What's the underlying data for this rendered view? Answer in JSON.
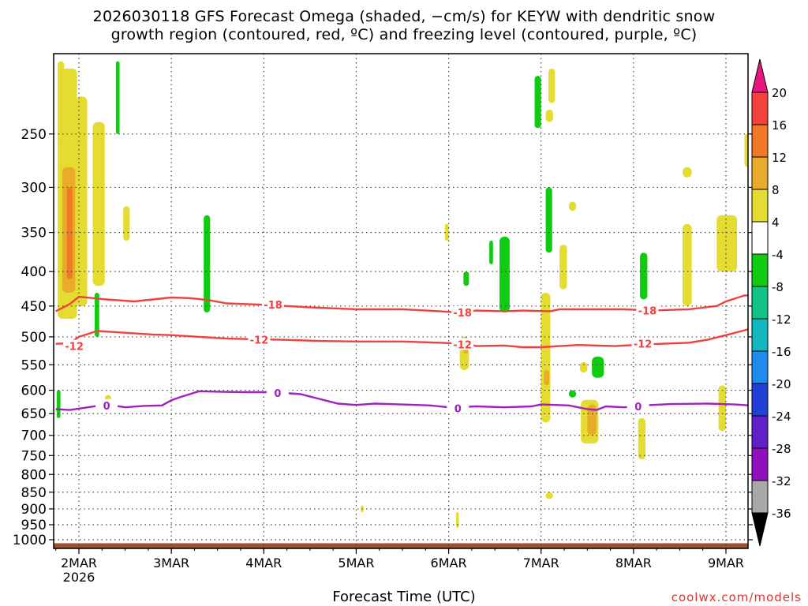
{
  "chart_data": {
    "type": "heatmap",
    "title_line1": "2026030118 GFS Forecast Omega (shaded, −cm/s) for KEYW with dendritic snow",
    "title_line2": "growth region (contoured, red, ºC) and freezing level (contoured, purple, ºC)",
    "xlabel": "Forecast Time (UTC)",
    "credit": "coolwx.com/models",
    "x_axis": {
      "unit": "day",
      "range": [
        "2026-03-01T18",
        "2026-03-09T06"
      ],
      "ticks": [
        {
          "label": "2MAR",
          "sub": "2026",
          "day": 2
        },
        {
          "label": "3MAR",
          "day": 3
        },
        {
          "label": "4MAR",
          "day": 4
        },
        {
          "label": "5MAR",
          "day": 5
        },
        {
          "label": "6MAR",
          "day": 6
        },
        {
          "label": "7MAR",
          "day": 7
        },
        {
          "label": "8MAR",
          "day": 8
        },
        {
          "label": "9MAR",
          "day": 9
        }
      ]
    },
    "y_axis": {
      "unit": "hPa",
      "range": [
        1030,
        190
      ],
      "ticks": [
        250,
        300,
        350,
        400,
        450,
        500,
        550,
        600,
        650,
        700,
        750,
        800,
        850,
        900,
        950,
        1000
      ]
    },
    "colorbar": {
      "levels": [
        20,
        16,
        12,
        8,
        4,
        -4,
        -8,
        -12,
        -16,
        -20,
        -24,
        -28,
        -32,
        -36
      ],
      "colors": [
        "#e8157e",
        "#f5413c",
        "#f07828",
        "#e8ac2a",
        "#e5dc32",
        "#ffffff",
        "#10cc10",
        "#12c388",
        "#12b8c0",
        "#1e8cee",
        "#2040d8",
        "#6020c8",
        "#9010c0",
        "#a8a8a8",
        "#000000"
      ]
    },
    "contours": [
      {
        "label": "-18",
        "color": "#f04040",
        "points": [
          [
            1.75,
            458
          ],
          [
            1.9,
            447
          ],
          [
            2.0,
            436
          ],
          [
            2.3,
            440
          ],
          [
            2.6,
            443
          ],
          [
            2.8,
            440
          ],
          [
            3.0,
            437
          ],
          [
            3.2,
            438
          ],
          [
            3.4,
            441
          ],
          [
            3.6,
            446
          ],
          [
            4.0,
            448
          ],
          [
            4.5,
            452
          ],
          [
            5.0,
            455
          ],
          [
            5.5,
            455
          ],
          [
            5.9,
            458
          ],
          [
            6.1,
            460
          ],
          [
            6.3,
            457
          ],
          [
            6.6,
            458
          ],
          [
            6.8,
            457
          ],
          [
            7.1,
            458
          ],
          [
            7.2,
            455
          ],
          [
            7.6,
            455
          ],
          [
            7.9,
            455
          ],
          [
            8.2,
            457
          ],
          [
            8.4,
            456
          ],
          [
            8.6,
            455
          ],
          [
            8.9,
            450
          ],
          [
            9.0,
            443
          ],
          [
            9.2,
            434
          ],
          [
            9.25,
            434
          ]
        ],
        "labels_at": [
          [
            4.1,
            448
          ],
          [
            6.15,
            460
          ],
          [
            8.15,
            457
          ]
        ]
      },
      {
        "label": "-12",
        "color": "#f04040",
        "points": [
          [
            1.75,
            512
          ],
          [
            1.9,
            511
          ],
          [
            2.0,
            500
          ],
          [
            2.2,
            490
          ],
          [
            2.4,
            492
          ],
          [
            2.6,
            494
          ],
          [
            2.8,
            496
          ],
          [
            3.0,
            497
          ],
          [
            3.3,
            500
          ],
          [
            3.6,
            503
          ],
          [
            3.9,
            504
          ],
          [
            4.2,
            505
          ],
          [
            4.6,
            507
          ],
          [
            5.0,
            508
          ],
          [
            5.5,
            508
          ],
          [
            5.9,
            510
          ],
          [
            6.2,
            512
          ],
          [
            6.3,
            516
          ],
          [
            6.6,
            515
          ],
          [
            6.8,
            518
          ],
          [
            7.0,
            518
          ],
          [
            7.2,
            516
          ],
          [
            7.4,
            514
          ],
          [
            7.8,
            516
          ],
          [
            8.0,
            514
          ],
          [
            8.3,
            512
          ],
          [
            8.6,
            510
          ],
          [
            8.8,
            505
          ],
          [
            9.0,
            497
          ],
          [
            9.25,
            487
          ]
        ],
        "labels_at": [
          [
            1.95,
            516
          ],
          [
            3.95,
            505
          ],
          [
            6.15,
            513
          ],
          [
            8.1,
            512
          ]
        ]
      },
      {
        "label": "0",
        "color": "#a020c0",
        "points": [
          [
            1.75,
            640
          ],
          [
            1.9,
            642
          ],
          [
            2.1,
            636
          ],
          [
            2.3,
            630
          ],
          [
            2.5,
            636
          ],
          [
            2.7,
            633
          ],
          [
            2.9,
            632
          ],
          [
            3.0,
            621
          ],
          [
            3.1,
            614
          ],
          [
            3.2,
            608
          ],
          [
            3.3,
            602
          ],
          [
            3.5,
            603
          ],
          [
            3.8,
            604
          ],
          [
            4.1,
            604
          ],
          [
            4.4,
            608
          ],
          [
            4.6,
            618
          ],
          [
            4.8,
            628
          ],
          [
            5.0,
            631
          ],
          [
            5.2,
            628
          ],
          [
            5.5,
            630
          ],
          [
            5.8,
            632
          ],
          [
            6.0,
            636
          ],
          [
            6.3,
            634
          ],
          [
            6.6,
            636
          ],
          [
            6.9,
            634
          ],
          [
            7.0,
            630
          ],
          [
            7.3,
            632
          ],
          [
            7.5,
            640
          ],
          [
            7.6,
            642
          ],
          [
            7.7,
            634
          ],
          [
            7.9,
            636
          ],
          [
            8.1,
            632
          ],
          [
            8.4,
            629
          ],
          [
            8.8,
            628
          ],
          [
            9.1,
            630
          ],
          [
            9.25,
            632
          ]
        ],
        "labels_at": [
          [
            2.3,
            632
          ],
          [
            4.15,
            606
          ],
          [
            6.1,
            638
          ],
          [
            8.05,
            634
          ]
        ]
      }
    ],
    "shaded_regions": [
      {
        "level": 4,
        "t0": 1.77,
        "t1": 1.98,
        "p0": 200,
        "p1": 470
      },
      {
        "level": 4,
        "t0": 1.97,
        "t1": 2.09,
        "p0": 220,
        "p1": 450
      },
      {
        "level": 4,
        "t0": 1.77,
        "t1": 1.84,
        "p0": 195,
        "p1": 260
      },
      {
        "level": 4,
        "t0": 2.15,
        "t1": 2.28,
        "p0": 240,
        "p1": 420
      },
      {
        "level": 4,
        "t0": 2.48,
        "t1": 2.55,
        "p0": 320,
        "p1": 360
      },
      {
        "level": 8,
        "t0": 1.82,
        "t1": 1.96,
        "p0": 280,
        "p1": 430
      },
      {
        "level": 12,
        "t0": 1.87,
        "t1": 1.93,
        "p0": 300,
        "p1": 410
      },
      {
        "level": 4,
        "t0": 2.28,
        "t1": 2.35,
        "p0": 610,
        "p1": 640
      },
      {
        "level": 4,
        "t0": 7.0,
        "t1": 7.1,
        "p0": 430,
        "p1": 670
      },
      {
        "level": 8,
        "t0": 7.03,
        "t1": 7.09,
        "p0": 560,
        "p1": 590
      },
      {
        "level": 4,
        "t0": 7.08,
        "t1": 7.15,
        "p0": 200,
        "p1": 225
      },
      {
        "level": 4,
        "t0": 7.2,
        "t1": 7.28,
        "p0": 365,
        "p1": 425
      },
      {
        "level": 4,
        "t0": 7.3,
        "t1": 7.38,
        "p0": 315,
        "p1": 325
      },
      {
        "level": 4,
        "t0": 7.42,
        "t1": 7.5,
        "p0": 545,
        "p1": 565
      },
      {
        "level": 4,
        "t0": 7.43,
        "t1": 7.62,
        "p0": 620,
        "p1": 720
      },
      {
        "level": 8,
        "t0": 7.5,
        "t1": 7.6,
        "p0": 630,
        "p1": 700
      },
      {
        "level": 4,
        "t0": 8.05,
        "t1": 8.13,
        "p0": 660,
        "p1": 760
      },
      {
        "level": 4,
        "t0": 8.53,
        "t1": 8.63,
        "p0": 340,
        "p1": 450
      },
      {
        "level": 4,
        "t0": 8.53,
        "t1": 8.63,
        "p0": 280,
        "p1": 290
      },
      {
        "level": 4,
        "t0": 8.9,
        "t1": 9.12,
        "p0": 330,
        "p1": 400
      },
      {
        "level": 4,
        "t0": 8.92,
        "t1": 9.0,
        "p0": 590,
        "p1": 690
      },
      {
        "level": 4,
        "t0": 9.2,
        "t1": 9.27,
        "p0": 250,
        "p1": 280
      },
      {
        "level": 4,
        "t0": 6.12,
        "t1": 6.22,
        "p0": 500,
        "p1": 560
      },
      {
        "level": 8,
        "t0": 6.16,
        "t1": 6.21,
        "p0": 500,
        "p1": 530
      },
      {
        "level": 4,
        "t0": 5.96,
        "t1": 6.0,
        "p0": 340,
        "p1": 360
      },
      {
        "level": 4,
        "t0": 5.05,
        "t1": 5.08,
        "p0": 890,
        "p1": 910
      },
      {
        "level": 4,
        "t0": 6.08,
        "t1": 6.11,
        "p0": 910,
        "p1": 960
      },
      {
        "level": 4,
        "t0": 7.05,
        "t1": 7.13,
        "p0": 850,
        "p1": 870
      },
      {
        "level": 4,
        "t0": 7.05,
        "t1": 7.13,
        "p0": 230,
        "p1": 240
      },
      {
        "level": -4,
        "t0": 2.4,
        "t1": 2.44,
        "p0": 195,
        "p1": 250
      },
      {
        "level": -4,
        "t0": 3.35,
        "t1": 3.42,
        "p0": 330,
        "p1": 460
      },
      {
        "level": -4,
        "t0": 2.17,
        "t1": 2.22,
        "p0": 430,
        "p1": 500
      },
      {
        "level": -4,
        "t0": 6.55,
        "t1": 6.66,
        "p0": 355,
        "p1": 460
      },
      {
        "level": -4,
        "t0": 6.44,
        "t1": 6.48,
        "p0": 360,
        "p1": 390
      },
      {
        "level": -4,
        "t0": 6.93,
        "t1": 7.0,
        "p0": 205,
        "p1": 245
      },
      {
        "level": -4,
        "t0": 7.05,
        "t1": 7.12,
        "p0": 300,
        "p1": 375
      },
      {
        "level": -4,
        "t0": 7.55,
        "t1": 7.68,
        "p0": 535,
        "p1": 575
      },
      {
        "level": -4,
        "t0": 7.3,
        "t1": 7.38,
        "p0": 600,
        "p1": 615
      },
      {
        "level": -4,
        "t0": 8.07,
        "t1": 8.15,
        "p0": 375,
        "p1": 440
      },
      {
        "level": -4,
        "t0": 6.16,
        "t1": 6.22,
        "p0": 400,
        "p1": 420
      },
      {
        "level": -4,
        "t0": 1.76,
        "t1": 1.8,
        "p0": 600,
        "p1": 660
      }
    ],
    "surface": {
      "color": "#a0522d",
      "p_top": 1012
    }
  }
}
